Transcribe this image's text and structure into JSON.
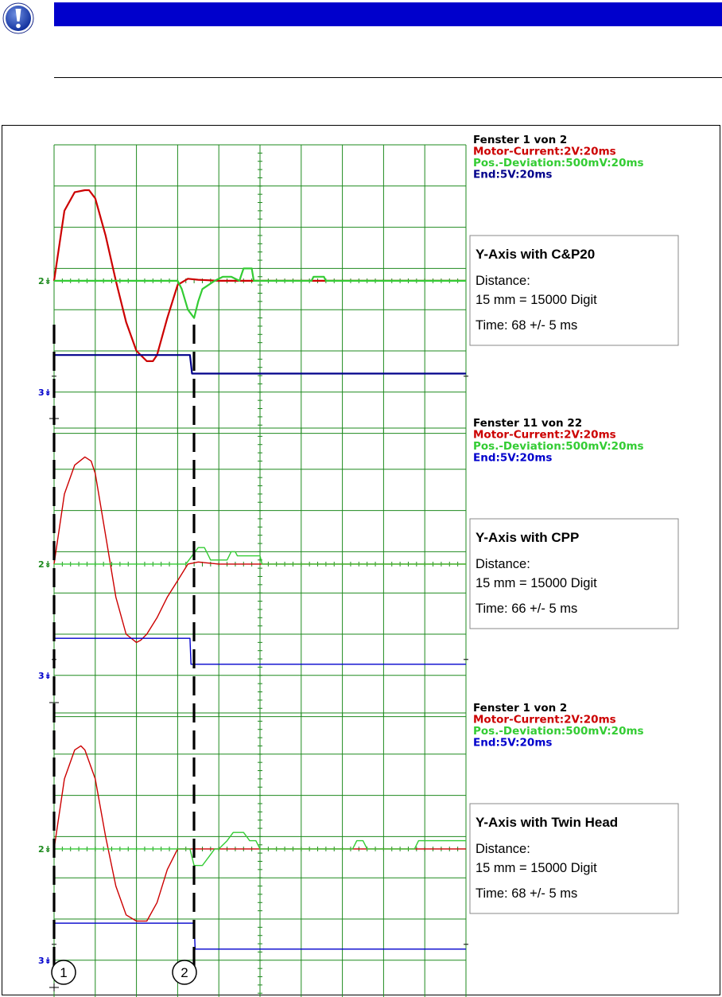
{
  "notice": {
    "icon": "exclamation-icon",
    "accent": "#0000cc"
  },
  "chart_data": [
    {
      "type": "line",
      "window_label": "Fenster 1 von 2",
      "info": {
        "title": "Y-Axis with C&P20",
        "distance_label": "Distance:",
        "distance_value": "15 mm = 15000 Digit",
        "time": "Time: 68 +/- 5 ms"
      },
      "x_unit": "ms",
      "ms_per_div": 20,
      "divisions": 10,
      "ch2_label": "2",
      "ch3_label": "3",
      "series": [
        {
          "name": "Motor-Current:2V:20ms",
          "color": "#cc0000",
          "units": "V",
          "v_per_div": 2,
          "baseline_div": 0,
          "x": [
            0,
            5,
            10,
            15,
            17,
            20,
            25,
            30,
            35,
            40,
            45,
            48,
            50,
            55,
            60,
            65,
            70,
            80,
            100,
            150,
            200
          ],
          "y": [
            0,
            3.4,
            4.3,
            4.4,
            4.4,
            4.0,
            2.2,
            0,
            -2.0,
            -3.4,
            -3.9,
            -3.9,
            -3.6,
            -1.8,
            -0.2,
            0.1,
            0.05,
            0,
            0,
            0,
            0
          ]
        },
        {
          "name": "Pos.-Deviation:500mV:20ms",
          "color": "#33cc33",
          "units": "mV",
          "v_per_div": 500,
          "baseline_div": 0,
          "x": [
            0,
            60,
            62,
            65,
            68,
            70,
            72,
            75,
            78,
            82,
            86,
            90,
            92,
            93,
            96,
            97,
            125,
            126,
            131,
            132,
            160,
            161,
            200
          ],
          "y": [
            0,
            0,
            -100,
            -350,
            -450,
            -250,
            -100,
            -50,
            0,
            50,
            50,
            0,
            150,
            150,
            150,
            0,
            0,
            50,
            50,
            0,
            0,
            0,
            0
          ]
        },
        {
          "name": "End:5V:20ms",
          "color": "#00008b",
          "units": "V",
          "v_per_div": 5,
          "baseline_div": -3,
          "x": [
            0,
            66,
            67,
            200
          ],
          "y": [
            5,
            5,
            2.5,
            2.5
          ]
        }
      ]
    },
    {
      "type": "line",
      "window_label": "Fenster 11 von 22",
      "info": {
        "title": "Y-Axis with CPP",
        "distance_label": "Distance:",
        "distance_value": "15 mm = 15000 Digit",
        "time": "Time: 66 +/- 5 ms"
      },
      "x_unit": "ms",
      "ms_per_div": 20,
      "divisions": 10,
      "ch2_label": "2",
      "ch3_label": "3",
      "series": [
        {
          "name": "Motor-Current:2V:20ms",
          "color": "#cc0000",
          "units": "V",
          "v_per_div": 2,
          "baseline_div": 0,
          "x": [
            0,
            5,
            10,
            15,
            18,
            20,
            25,
            30,
            35,
            40,
            42,
            45,
            50,
            55,
            60,
            65,
            70,
            80,
            200
          ],
          "y": [
            0,
            3.4,
            4.8,
            5.2,
            5.0,
            4.4,
            1.4,
            -1.6,
            -3.4,
            -3.8,
            -3.7,
            -3.4,
            -2.6,
            -1.6,
            -0.8,
            0,
            0.1,
            0,
            0
          ]
        },
        {
          "name": "Pos.-Deviation:500mV:20ms",
          "color": "#33cc33",
          "units": "mV",
          "v_per_div": 500,
          "baseline_div": 0,
          "x": [
            0,
            64,
            67,
            70,
            73,
            75,
            76,
            84,
            86,
            88,
            89,
            100,
            101,
            200
          ],
          "y": [
            0,
            0,
            100,
            200,
            200,
            100,
            50,
            50,
            150,
            150,
            100,
            100,
            0,
            0
          ]
        },
        {
          "name": "End:5V:20ms",
          "color": "#0000cc",
          "units": "V",
          "v_per_div": 5,
          "baseline_div": -3,
          "x": [
            0,
            66,
            66.5,
            200
          ],
          "y": [
            5,
            5,
            1.5,
            1.5
          ]
        }
      ]
    },
    {
      "type": "line",
      "window_label": "Fenster 1 von 2",
      "info": {
        "title": "Y-Axis with Twin Head",
        "distance_label": "Distance:",
        "distance_value": "15 mm = 15000 Digit",
        "time": "Time: 68 +/- 5 ms"
      },
      "x_unit": "ms",
      "ms_per_div": 20,
      "divisions": 10,
      "ch2_label": "2",
      "ch3_label": "3",
      "series": [
        {
          "name": "Motor-Current:2V:20ms",
          "color": "#cc0000",
          "units": "V",
          "v_per_div": 2,
          "baseline_div": 0,
          "x": [
            0,
            5,
            10,
            13,
            15,
            20,
            25,
            30,
            35,
            40,
            45,
            50,
            55,
            60,
            65,
            70,
            75,
            80,
            200
          ],
          "y": [
            0,
            3.4,
            4.8,
            5.0,
            4.8,
            3.4,
            0.6,
            -1.8,
            -3.2,
            -3.5,
            -3.5,
            -2.6,
            -1.0,
            0,
            0,
            0,
            0,
            0,
            0
          ]
        },
        {
          "name": "Pos.-Deviation:500mV:20ms",
          "color": "#33cc33",
          "units": "mV",
          "v_per_div": 500,
          "baseline_div": 0,
          "x": [
            0,
            66,
            68,
            72,
            75,
            78,
            80,
            84,
            87,
            92,
            95,
            98,
            100,
            145,
            147,
            150,
            152,
            175,
            177,
            180,
            200
          ],
          "y": [
            0,
            0,
            -200,
            -200,
            -100,
            0,
            0,
            100,
            200,
            200,
            100,
            100,
            0,
            0,
            100,
            100,
            0,
            0,
            100,
            100,
            100
          ]
        },
        {
          "name": "End:5V:20ms",
          "color": "#0000cc",
          "units": "V",
          "v_per_div": 5,
          "baseline_div": -3,
          "x": [
            0,
            68,
            68.5,
            200
          ],
          "y": [
            5,
            5,
            1.5,
            1.5
          ]
        }
      ]
    }
  ],
  "markers": [
    {
      "label": "1"
    },
    {
      "label": "2"
    }
  ]
}
